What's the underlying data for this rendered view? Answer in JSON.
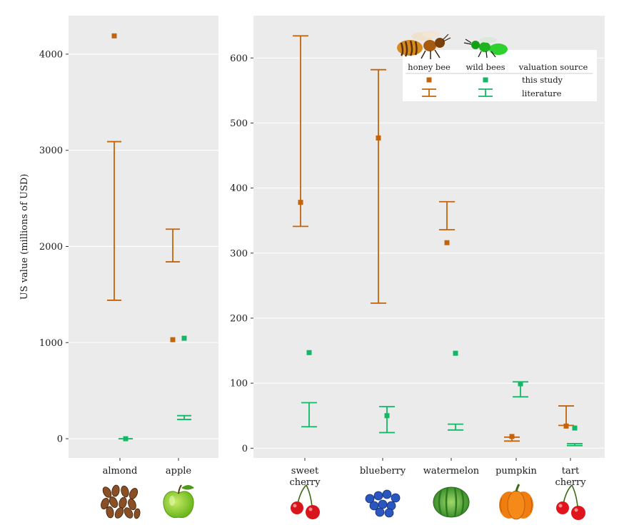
{
  "colors": {
    "honey_bee": "#c4640a",
    "wild_bees": "#12b865",
    "panel_bg": "#ebebeb",
    "grid": "#ffffff"
  },
  "legend": {
    "honey_bee_label": "honey bee",
    "wild_bees_label": "wild bees",
    "source_title": "valuation source",
    "this_study_label": "this study",
    "literature_label": "literature"
  },
  "chart_data": [
    {
      "type": "scatter",
      "ylabel": "US value (millions of USD)",
      "ylim": [
        -200,
        4400
      ],
      "yticks": [
        "0",
        "1000",
        "2000",
        "3000",
        "4000"
      ],
      "categories": [
        "almond",
        "apple"
      ],
      "category_icons": [
        "almond-icon",
        "apple-icon"
      ],
      "series": [
        {
          "name": "honey bee",
          "this_study": [
            4190,
            1030
          ],
          "literature_low": [
            1440,
            1840
          ],
          "literature_high": [
            3090,
            2180
          ]
        },
        {
          "name": "wild bees",
          "this_study": [
            0,
            1045
          ],
          "literature_low": [
            0,
            200
          ],
          "literature_high": [
            0,
            240
          ]
        }
      ],
      "grid": true
    },
    {
      "type": "scatter",
      "ylim": [
        -15,
        665
      ],
      "yticks": [
        "0",
        "100",
        "200",
        "300",
        "400",
        "500",
        "600"
      ],
      "categories": [
        [
          "sweet",
          "cherry"
        ],
        [
          "blueberry"
        ],
        [
          "watermelon"
        ],
        [
          "pumpkin"
        ],
        [
          "tart",
          "cherry"
        ]
      ],
      "category_icons": [
        "sweet-cherry-icon",
        "blueberry-icon",
        "watermelon-icon",
        "pumpkin-icon",
        "tart-cherry-icon"
      ],
      "series": [
        {
          "name": "honey bee",
          "this_study": [
            378,
            477,
            316,
            18,
            34
          ],
          "literature_low": [
            341,
            223,
            336,
            11,
            35
          ],
          "literature_high": [
            634,
            582,
            379,
            17,
            65
          ]
        },
        {
          "name": "wild bees",
          "this_study": [
            147,
            50,
            146,
            99,
            31
          ],
          "literature_low": [
            33,
            24,
            28,
            79,
            4
          ],
          "literature_high": [
            70,
            64,
            37,
            102,
            7
          ]
        }
      ],
      "grid": true,
      "legend_position": "top-right"
    }
  ]
}
